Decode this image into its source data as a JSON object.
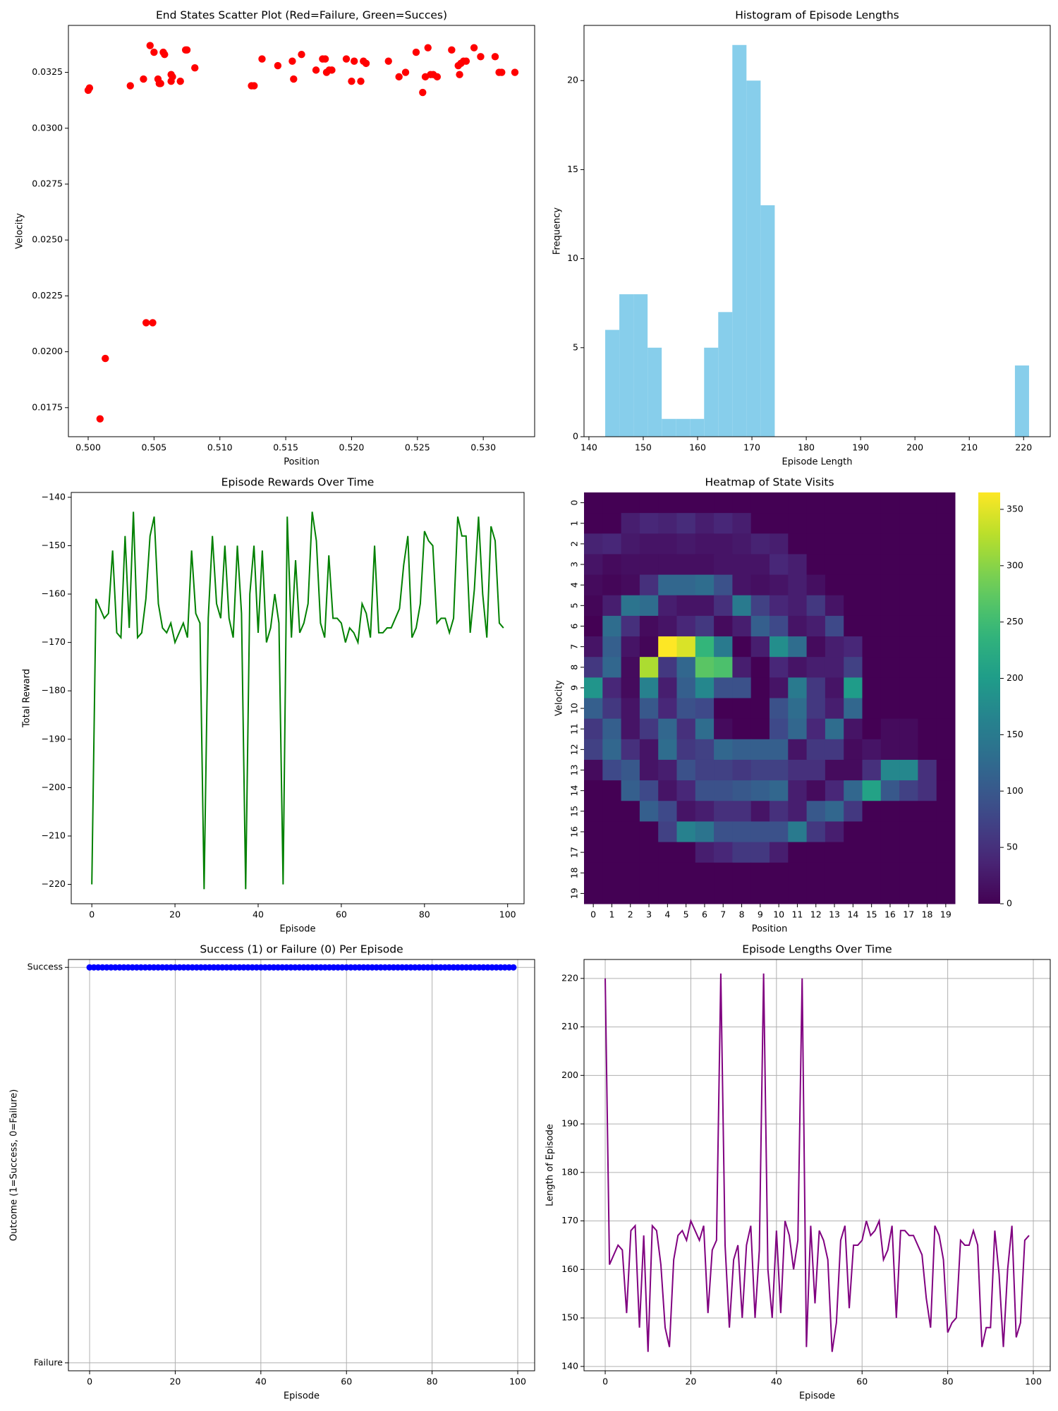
{
  "chart_data": [
    {
      "type": "scatter",
      "title": "End States Scatter Plot (Red=Failure, Green=Succes)",
      "xlabel": "Position",
      "ylabel": "Velocity",
      "xlim": [
        0.4985,
        0.5339
      ],
      "ylim": [
        0.0162,
        0.0346
      ],
      "xticks": [
        "0.500",
        "0.505",
        "0.510",
        "0.515",
        "0.520",
        "0.525",
        "0.530"
      ],
      "yticks": [
        "0.0175",
        "0.0200",
        "0.0225",
        "0.0250",
        "0.0275",
        "0.0300",
        "0.0325"
      ],
      "grid": false,
      "color": "#ff0000",
      "series": [
        {
          "x": [
            0.5,
            0.5001,
            0.5032,
            0.5042,
            0.5047,
            0.505,
            0.5053,
            0.5054,
            0.5055,
            0.5057,
            0.5058,
            0.5063,
            0.5063,
            0.5064,
            0.507,
            0.5074,
            0.5075,
            0.5081,
            0.5124,
            0.5126,
            0.5132,
            0.5144,
            0.5155,
            0.5156,
            0.5162,
            0.5173,
            0.5178,
            0.518,
            0.5181,
            0.5183,
            0.5185,
            0.5196,
            0.52,
            0.5202,
            0.5207,
            0.5209,
            0.5211,
            0.5228,
            0.5236,
            0.5241,
            0.5249,
            0.5254,
            0.5256,
            0.5258,
            0.526,
            0.5262,
            0.5265,
            0.5276,
            0.5281,
            0.5282,
            0.5283,
            0.5285,
            0.5287,
            0.5293,
            0.5298,
            0.5309,
            0.5312,
            0.5314,
            0.5324,
            0.5009,
            0.5013,
            0.5044,
            0.5049
          ],
          "y": [
            0.0317,
            0.0318,
            0.0319,
            0.0322,
            0.0337,
            0.0334,
            0.0322,
            0.032,
            0.032,
            0.0334,
            0.0333,
            0.0321,
            0.0324,
            0.0323,
            0.0321,
            0.0335,
            0.0335,
            0.0327,
            0.0319,
            0.0319,
            0.0331,
            0.0328,
            0.033,
            0.0322,
            0.0333,
            0.0326,
            0.0331,
            0.0331,
            0.0325,
            0.0326,
            0.0326,
            0.0331,
            0.0321,
            0.033,
            0.0321,
            0.033,
            0.0329,
            0.033,
            0.0323,
            0.0325,
            0.0334,
            0.0316,
            0.0323,
            0.0336,
            0.0324,
            0.0324,
            0.0323,
            0.0335,
            0.0328,
            0.0324,
            0.0329,
            0.033,
            0.033,
            0.0336,
            0.0332,
            0.0332,
            0.0325,
            0.0325,
            0.0325,
            0.017,
            0.0197,
            0.0213,
            0.0213
          ]
        }
      ]
    },
    {
      "type": "bar",
      "title": "Histogram of Episode Lengths",
      "xlabel": "Episode Length",
      "ylabel": "Frequency",
      "xlim": [
        139.1,
        224.9
      ],
      "ylim": [
        0,
        23.1
      ],
      "xticks": [
        "140",
        "150",
        "160",
        "170",
        "180",
        "190",
        "200",
        "210",
        "220"
      ],
      "yticks": [
        "0",
        "5",
        "10",
        "15",
        "20"
      ],
      "grid": false,
      "color": "#87ceeb",
      "bin_start": 143,
      "bin_width": 2.6,
      "values": [
        6,
        8,
        8,
        5,
        1,
        1,
        1,
        5,
        7,
        22,
        20,
        13,
        0,
        0,
        0,
        0,
        0,
        0,
        0,
        0,
        0,
        0,
        0,
        0,
        0,
        0,
        0,
        0,
        0,
        4
      ]
    },
    {
      "type": "line",
      "title": "Episode Rewards Over Time",
      "xlabel": "Episode",
      "ylabel": "Total Reward",
      "xlim": [
        -4.95,
        103.95
      ],
      "ylim": [
        -224.0,
        -139.0
      ],
      "xticks": [
        "0",
        "20",
        "40",
        "60",
        "80",
        "100"
      ],
      "yticks": [
        "−140",
        "−150",
        "−160",
        "−170",
        "−180",
        "−190",
        "−200",
        "−210",
        "−220"
      ],
      "grid": false,
      "color": "#008000",
      "x_start": 0,
      "y": [
        -220,
        -161,
        -163,
        -165,
        -164,
        -151,
        -168,
        -169,
        -148,
        -167,
        -143,
        -169,
        -168,
        -161,
        -148,
        -144,
        -162,
        -167,
        -168,
        -166,
        -170,
        -168,
        -166,
        -169,
        -151,
        -164,
        -166,
        -221,
        -165,
        -148,
        -162,
        -165,
        -150,
        -165,
        -169,
        -150,
        -164,
        -221,
        -160,
        -150,
        -168,
        -151,
        -170,
        -167,
        -160,
        -166,
        -220,
        -144,
        -169,
        -153,
        -168,
        -166,
        -162,
        -143,
        -149,
        -166,
        -169,
        -152,
        -165,
        -165,
        -166,
        -170,
        -167,
        -168,
        -170,
        -162,
        -164,
        -169,
        -150,
        -168,
        -168,
        -167,
        -167,
        -165,
        -163,
        -154,
        -148,
        -169,
        -167,
        -162,
        -147,
        -149,
        -150,
        -166,
        -165,
        -165,
        -168,
        -165,
        -144,
        -148,
        -148,
        -168,
        -159,
        -144,
        -160,
        -169,
        -146,
        -149,
        -166,
        -167
      ]
    },
    {
      "type": "heatmap",
      "title": "Heatmap of State Visits",
      "xlabel": "Position",
      "ylabel": "Velocity",
      "xticks": [
        "0",
        "1",
        "2",
        "3",
        "4",
        "5",
        "6",
        "7",
        "8",
        "9",
        "10",
        "11",
        "12",
        "13",
        "14",
        "15",
        "16",
        "17",
        "18",
        "19"
      ],
      "yticks": [
        "0",
        "1",
        "2",
        "3",
        "4",
        "5",
        "6",
        "7",
        "8",
        "9",
        "10",
        "11",
        "12",
        "13",
        "14",
        "15",
        "16",
        "17",
        "18",
        "19"
      ],
      "colorbar": {
        "min": 0,
        "max": 365,
        "ticks": [
          "0",
          "50",
          "100",
          "150",
          "200",
          "250",
          "300",
          "350"
        ]
      },
      "colormap": "viridis",
      "values": [
        [
          0,
          0,
          0,
          0,
          0,
          0,
          0,
          0,
          0,
          0,
          0,
          0,
          0,
          0,
          0,
          0,
          0,
          0,
          0,
          0
        ],
        [
          0,
          0,
          30,
          40,
          35,
          45,
          30,
          40,
          30,
          0,
          0,
          0,
          0,
          0,
          0,
          0,
          0,
          0,
          0,
          0
        ],
        [
          35,
          40,
          25,
          20,
          20,
          25,
          20,
          20,
          25,
          35,
          30,
          0,
          0,
          0,
          0,
          0,
          0,
          0,
          0,
          0
        ],
        [
          20,
          10,
          15,
          15,
          15,
          15,
          15,
          20,
          20,
          20,
          40,
          30,
          0,
          0,
          0,
          0,
          0,
          0,
          0,
          0
        ],
        [
          10,
          5,
          10,
          50,
          120,
          120,
          130,
          90,
          20,
          15,
          20,
          30,
          15,
          0,
          0,
          0,
          0,
          0,
          0,
          0
        ],
        [
          5,
          30,
          140,
          130,
          30,
          20,
          20,
          50,
          150,
          70,
          40,
          30,
          60,
          20,
          0,
          0,
          0,
          0,
          0,
          0
        ],
        [
          0,
          130,
          50,
          10,
          20,
          40,
          60,
          10,
          30,
          110,
          80,
          20,
          30,
          80,
          0,
          0,
          0,
          0,
          0,
          0
        ],
        [
          20,
          110,
          20,
          5,
          365,
          345,
          240,
          150,
          0,
          30,
          180,
          130,
          10,
          30,
          40,
          0,
          0,
          0,
          0,
          0
        ],
        [
          60,
          120,
          10,
          320,
          60,
          120,
          270,
          260,
          30,
          0,
          40,
          20,
          30,
          30,
          70,
          0,
          0,
          0,
          0,
          0
        ],
        [
          190,
          40,
          10,
          160,
          30,
          110,
          170,
          90,
          90,
          0,
          20,
          150,
          60,
          20,
          200,
          0,
          0,
          0,
          0,
          0
        ],
        [
          110,
          60,
          20,
          100,
          40,
          90,
          80,
          0,
          0,
          0,
          90,
          130,
          60,
          30,
          120,
          0,
          0,
          0,
          0,
          0
        ],
        [
          60,
          110,
          20,
          60,
          120,
          50,
          130,
          10,
          0,
          0,
          80,
          120,
          40,
          130,
          20,
          0,
          10,
          10,
          0,
          0
        ],
        [
          70,
          120,
          50,
          20,
          130,
          60,
          70,
          120,
          110,
          110,
          110,
          20,
          60,
          60,
          10,
          20,
          10,
          10,
          0,
          0
        ],
        [
          10,
          80,
          100,
          20,
          30,
          90,
          70,
          70,
          60,
          70,
          70,
          50,
          50,
          10,
          10,
          50,
          170,
          170,
          50,
          0
        ],
        [
          0,
          0,
          110,
          80,
          20,
          40,
          90,
          90,
          100,
          110,
          120,
          30,
          10,
          40,
          120,
          210,
          100,
          70,
          50,
          0
        ],
        [
          0,
          0,
          0,
          110,
          80,
          20,
          30,
          50,
          50,
          20,
          50,
          30,
          100,
          120,
          60,
          0,
          0,
          0,
          0,
          0
        ],
        [
          0,
          0,
          0,
          0,
          70,
          160,
          140,
          90,
          90,
          90,
          90,
          150,
          60,
          30,
          0,
          0,
          0,
          0,
          0,
          0
        ],
        [
          0,
          0,
          0,
          0,
          0,
          0,
          30,
          40,
          60,
          60,
          30,
          0,
          0,
          0,
          0,
          0,
          0,
          0,
          0,
          0
        ],
        [
          0,
          0,
          0,
          0,
          0,
          0,
          0,
          0,
          0,
          0,
          0,
          0,
          0,
          0,
          0,
          0,
          0,
          0,
          0,
          0
        ],
        [
          0,
          0,
          0,
          0,
          0,
          0,
          0,
          0,
          0,
          0,
          0,
          0,
          0,
          0,
          0,
          0,
          0,
          0,
          0,
          0
        ]
      ]
    },
    {
      "type": "line",
      "title": "Success (1) or Failure (0) Per Episode",
      "xlabel": "Episode",
      "ylabel": "Outcome (1=Success, 0=Failure)",
      "xlim": [
        -4.95,
        103.95
      ],
      "ylim": [
        -0.02,
        1.02
      ],
      "xticks": [
        "0",
        "20",
        "40",
        "60",
        "80",
        "100"
      ],
      "yticks": [
        "Failure",
        "Success"
      ],
      "grid": true,
      "color": "#0000ff",
      "markers": true,
      "x_start": 0,
      "y": [
        1,
        1,
        1,
        1,
        1,
        1,
        1,
        1,
        1,
        1,
        1,
        1,
        1,
        1,
        1,
        1,
        1,
        1,
        1,
        1,
        1,
        1,
        1,
        1,
        1,
        1,
        1,
        1,
        1,
        1,
        1,
        1,
        1,
        1,
        1,
        1,
        1,
        1,
        1,
        1,
        1,
        1,
        1,
        1,
        1,
        1,
        1,
        1,
        1,
        1,
        1,
        1,
        1,
        1,
        1,
        1,
        1,
        1,
        1,
        1,
        1,
        1,
        1,
        1,
        1,
        1,
        1,
        1,
        1,
        1,
        1,
        1,
        1,
        1,
        1,
        1,
        1,
        1,
        1,
        1,
        1,
        1,
        1,
        1,
        1,
        1,
        1,
        1,
        1,
        1,
        1,
        1,
        1,
        1,
        1,
        1,
        1,
        1,
        1,
        1
      ]
    },
    {
      "type": "line",
      "title": "Episode Lengths Over Time",
      "xlabel": "Episode",
      "ylabel": "Length of Episode",
      "xlim": [
        -4.95,
        103.95
      ],
      "ylim": [
        139.1,
        223.9
      ],
      "xticks": [
        "0",
        "20",
        "40",
        "60",
        "80",
        "100"
      ],
      "yticks": [
        "140",
        "150",
        "160",
        "170",
        "180",
        "190",
        "200",
        "210",
        "220"
      ],
      "grid": true,
      "color": "#800080",
      "x_start": 0,
      "y": [
        220,
        161,
        163,
        165,
        164,
        151,
        168,
        169,
        148,
        167,
        143,
        169,
        168,
        161,
        148,
        144,
        162,
        167,
        168,
        166,
        170,
        168,
        166,
        169,
        151,
        164,
        166,
        221,
        165,
        148,
        162,
        165,
        150,
        165,
        169,
        150,
        164,
        221,
        160,
        150,
        168,
        151,
        170,
        167,
        160,
        166,
        220,
        144,
        169,
        153,
        168,
        166,
        162,
        143,
        149,
        166,
        169,
        152,
        165,
        165,
        166,
        170,
        167,
        168,
        170,
        162,
        164,
        169,
        150,
        168,
        168,
        167,
        167,
        165,
        163,
        154,
        148,
        169,
        167,
        162,
        147,
        149,
        150,
        166,
        165,
        165,
        168,
        165,
        144,
        148,
        148,
        168,
        159,
        144,
        160,
        169,
        146,
        149,
        166,
        167
      ]
    }
  ]
}
